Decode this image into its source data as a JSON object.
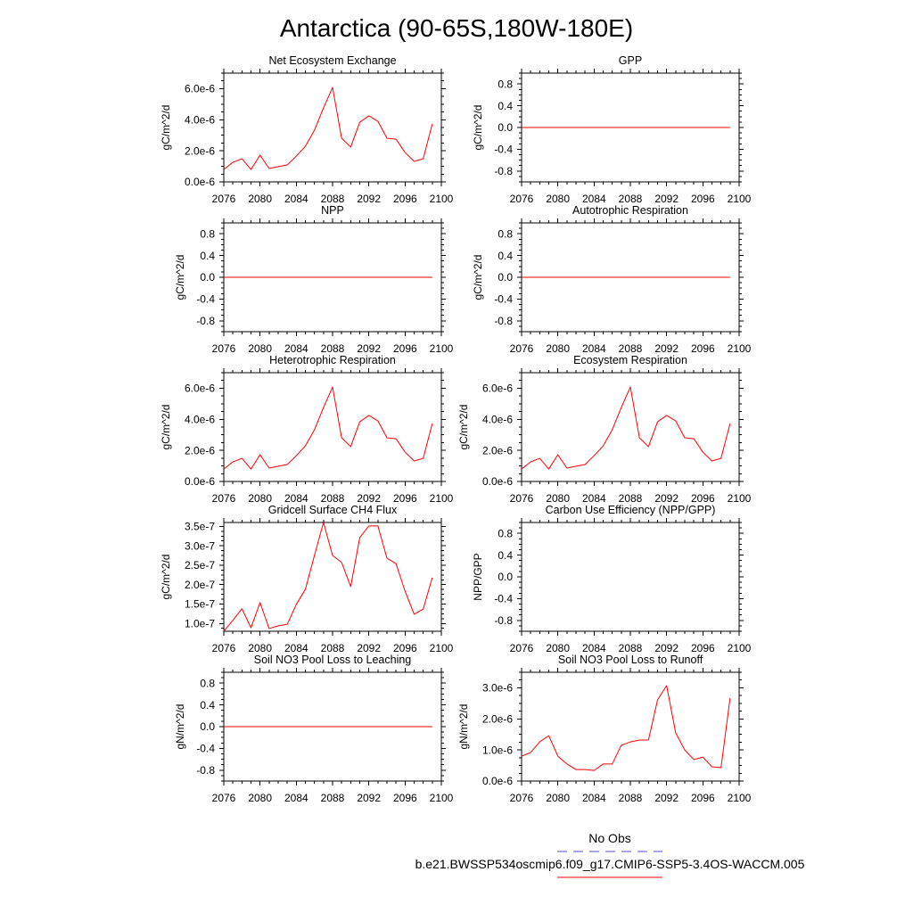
{
  "title": "Antarctica (90-65S,180W-180E)",
  "legend": {
    "obs_label": "No Obs",
    "obs_color": "#4b4bcf",
    "model_label": "b.e21.BWSSP534oscmip6.f09_g17.CMIP6-SSP5-3.4OS-WACCM.005",
    "model_color": "#ff0000"
  },
  "chart_data": [
    {
      "type": "line",
      "title": "Net Ecosystem Exchange",
      "ylabel": "gC/m^2/d",
      "xlim": [
        2076,
        2100
      ],
      "ylim": [
        0,
        7e-06
      ],
      "xticks": [
        2076,
        2080,
        2084,
        2088,
        2092,
        2096,
        2100
      ],
      "xticklabels": [
        "2076",
        "2080",
        "2084",
        "2088",
        "2092",
        "2096",
        "2100"
      ],
      "yticks": [
        0,
        2e-06,
        4e-06,
        6e-06
      ],
      "yticklabels": [
        "0.0e-6",
        "2.0e-6",
        "4.0e-6",
        "6.0e-6"
      ],
      "x": [
        2076,
        2077,
        2078,
        2079,
        2080,
        2081,
        2082,
        2083,
        2084,
        2085,
        2086,
        2087,
        2088,
        2089,
        2090,
        2091,
        2092,
        2093,
        2094,
        2095,
        2096,
        2097,
        2098,
        2099
      ],
      "y": [
        8e-07,
        1.26e-06,
        1.49e-06,
        8e-07,
        1.72e-06,
        8.6e-07,
        9.8e-07,
        1.09e-06,
        1.66e-06,
        2.29e-06,
        3.33e-06,
        4.76e-06,
        6.08e-06,
        2.81e-06,
        2.24e-06,
        3.84e-06,
        4.25e-06,
        3.9e-06,
        2.81e-06,
        2.75e-06,
        1.89e-06,
        1.32e-06,
        1.49e-06,
        3.73e-06
      ],
      "line_color": "#ff0000"
    },
    {
      "type": "line",
      "title": "GPP",
      "ylabel": "gC/m^2/d",
      "xlim": [
        2076,
        2100
      ],
      "ylim": [
        -1,
        1
      ],
      "xticks": [
        2076,
        2080,
        2084,
        2088,
        2092,
        2096,
        2100
      ],
      "xticklabels": [
        "2076",
        "2080",
        "2084",
        "2088",
        "2092",
        "2096",
        "2100"
      ],
      "yticks": [
        -0.8,
        -0.4,
        0,
        0.4,
        0.8
      ],
      "yticklabels": [
        "-0.8",
        "-0.4",
        "0.0",
        "0.4",
        "0.8"
      ],
      "x": [
        2076,
        2077,
        2078,
        2079,
        2080,
        2081,
        2082,
        2083,
        2084,
        2085,
        2086,
        2087,
        2088,
        2089,
        2090,
        2091,
        2092,
        2093,
        2094,
        2095,
        2096,
        2097,
        2098,
        2099
      ],
      "y": [
        0,
        0,
        0,
        0,
        0,
        0,
        0,
        0,
        0,
        0,
        0,
        0,
        0,
        0,
        0,
        0,
        0,
        0,
        0,
        0,
        0,
        0,
        0,
        0
      ],
      "line_color": "#ff0000"
    },
    {
      "type": "line",
      "title": "NPP",
      "ylabel": "gC/m^2/d",
      "xlim": [
        2076,
        2100
      ],
      "ylim": [
        -1,
        1
      ],
      "xticks": [
        2076,
        2080,
        2084,
        2088,
        2092,
        2096,
        2100
      ],
      "xticklabels": [
        "2076",
        "2080",
        "2084",
        "2088",
        "2092",
        "2096",
        "2100"
      ],
      "yticks": [
        -0.8,
        -0.4,
        0,
        0.4,
        0.8
      ],
      "yticklabels": [
        "-0.8",
        "-0.4",
        "0.0",
        "0.4",
        "0.8"
      ],
      "x": [
        2076,
        2077,
        2078,
        2079,
        2080,
        2081,
        2082,
        2083,
        2084,
        2085,
        2086,
        2087,
        2088,
        2089,
        2090,
        2091,
        2092,
        2093,
        2094,
        2095,
        2096,
        2097,
        2098,
        2099
      ],
      "y": [
        0,
        0,
        0,
        0,
        0,
        0,
        0,
        0,
        0,
        0,
        0,
        0,
        0,
        0,
        0,
        0,
        0,
        0,
        0,
        0,
        0,
        0,
        0,
        0
      ],
      "line_color": "#ff0000"
    },
    {
      "type": "line",
      "title": "Autotrophic Respiration",
      "ylabel": "gC/m^2/d",
      "xlim": [
        2076,
        2100
      ],
      "ylim": [
        -1,
        1
      ],
      "xticks": [
        2076,
        2080,
        2084,
        2088,
        2092,
        2096,
        2100
      ],
      "xticklabels": [
        "2076",
        "2080",
        "2084",
        "2088",
        "2092",
        "2096",
        "2100"
      ],
      "yticks": [
        -0.8,
        -0.4,
        0,
        0.4,
        0.8
      ],
      "yticklabels": [
        "-0.8",
        "-0.4",
        "0.0",
        "0.4",
        "0.8"
      ],
      "x": [
        2076,
        2077,
        2078,
        2079,
        2080,
        2081,
        2082,
        2083,
        2084,
        2085,
        2086,
        2087,
        2088,
        2089,
        2090,
        2091,
        2092,
        2093,
        2094,
        2095,
        2096,
        2097,
        2098,
        2099
      ],
      "y": [
        0,
        0,
        0,
        0,
        0,
        0,
        0,
        0,
        0,
        0,
        0,
        0,
        0,
        0,
        0,
        0,
        0,
        0,
        0,
        0,
        0,
        0,
        0,
        0
      ],
      "line_color": "#ff0000"
    },
    {
      "type": "line",
      "title": "Heterotrophic Respiration",
      "ylabel": "gC/m^2/d",
      "xlim": [
        2076,
        2100
      ],
      "ylim": [
        0,
        7e-06
      ],
      "xticks": [
        2076,
        2080,
        2084,
        2088,
        2092,
        2096,
        2100
      ],
      "xticklabels": [
        "2076",
        "2080",
        "2084",
        "2088",
        "2092",
        "2096",
        "2100"
      ],
      "yticks": [
        0,
        2e-06,
        4e-06,
        6e-06
      ],
      "yticklabels": [
        "0.0e-6",
        "2.0e-6",
        "4.0e-6",
        "6.0e-6"
      ],
      "x": [
        2076,
        2077,
        2078,
        2079,
        2080,
        2081,
        2082,
        2083,
        2084,
        2085,
        2086,
        2087,
        2088,
        2089,
        2090,
        2091,
        2092,
        2093,
        2094,
        2095,
        2096,
        2097,
        2098,
        2099
      ],
      "y": [
        8e-07,
        1.26e-06,
        1.49e-06,
        8e-07,
        1.72e-06,
        8.6e-07,
        9.8e-07,
        1.09e-06,
        1.66e-06,
        2.29e-06,
        3.33e-06,
        4.76e-06,
        6.08e-06,
        2.81e-06,
        2.24e-06,
        3.84e-06,
        4.25e-06,
        3.9e-06,
        2.81e-06,
        2.75e-06,
        1.89e-06,
        1.32e-06,
        1.49e-06,
        3.73e-06
      ],
      "line_color": "#ff0000"
    },
    {
      "type": "line",
      "title": "Ecosystem Respiration",
      "ylabel": "gC/m^2/d",
      "xlim": [
        2076,
        2100
      ],
      "ylim": [
        0,
        7e-06
      ],
      "xticks": [
        2076,
        2080,
        2084,
        2088,
        2092,
        2096,
        2100
      ],
      "xticklabels": [
        "2076",
        "2080",
        "2084",
        "2088",
        "2092",
        "2096",
        "2100"
      ],
      "yticks": [
        0,
        2e-06,
        4e-06,
        6e-06
      ],
      "yticklabels": [
        "0.0e-6",
        "2.0e-6",
        "4.0e-6",
        "6.0e-6"
      ],
      "x": [
        2076,
        2077,
        2078,
        2079,
        2080,
        2081,
        2082,
        2083,
        2084,
        2085,
        2086,
        2087,
        2088,
        2089,
        2090,
        2091,
        2092,
        2093,
        2094,
        2095,
        2096,
        2097,
        2098,
        2099
      ],
      "y": [
        8e-07,
        1.26e-06,
        1.49e-06,
        8e-07,
        1.72e-06,
        8.6e-07,
        9.8e-07,
        1.09e-06,
        1.66e-06,
        2.29e-06,
        3.33e-06,
        4.76e-06,
        6.08e-06,
        2.81e-06,
        2.24e-06,
        3.84e-06,
        4.25e-06,
        3.9e-06,
        2.81e-06,
        2.75e-06,
        1.89e-06,
        1.32e-06,
        1.49e-06,
        3.73e-06
      ],
      "line_color": "#ff0000"
    },
    {
      "type": "line",
      "title": "Gridcell Surface CH4 Flux",
      "ylabel": "gC/m^2/d",
      "xlim": [
        2076,
        2100
      ],
      "ylim": [
        8e-08,
        3.6e-07
      ],
      "xticks": [
        2076,
        2080,
        2084,
        2088,
        2092,
        2096,
        2100
      ],
      "xticklabels": [
        "2076",
        "2080",
        "2084",
        "2088",
        "2092",
        "2096",
        "2100"
      ],
      "yticks": [
        1e-07,
        1.5e-07,
        2e-07,
        2.5e-07,
        3e-07,
        3.5e-07
      ],
      "yticklabels": [
        "1.0e-7",
        "1.5e-7",
        "2.0e-7",
        "2.5e-7",
        "3.0e-7",
        "3.5e-7"
      ],
      "x": [
        2076,
        2077,
        2078,
        2079,
        2080,
        2081,
        2082,
        2083,
        2084,
        2085,
        2086,
        2087,
        2088,
        2089,
        2090,
        2091,
        2092,
        2093,
        2094,
        2095,
        2096,
        2097,
        2098,
        2099
      ],
      "y": [
        8e-08,
        1.08e-07,
        1.38e-07,
        8.9e-08,
        1.54e-07,
        8.7e-08,
        9.4e-08,
        9.8e-08,
        1.49e-07,
        1.88e-07,
        2.75e-07,
        3.6e-07,
        2.75e-07,
        2.57e-07,
        1.95e-07,
        3.21e-07,
        3.51e-07,
        3.51e-07,
        2.68e-07,
        2.54e-07,
        1.83e-07,
        1.24e-07,
        1.37e-07,
        2.18e-07
      ],
      "line_color": "#ff0000"
    },
    {
      "type": "line",
      "title": "Carbon Use Efficiency (NPP/GPP)",
      "ylabel": "NPP/GPP",
      "xlim": [
        2076,
        2100
      ],
      "ylim": [
        -1,
        1
      ],
      "xticks": [
        2076,
        2080,
        2084,
        2088,
        2092,
        2096,
        2100
      ],
      "xticklabels": [
        "2076",
        "2080",
        "2084",
        "2088",
        "2092",
        "2096",
        "2100"
      ],
      "yticks": [
        -0.8,
        -0.4,
        0,
        0.4,
        0.8
      ],
      "yticklabels": [
        "-0.8",
        "-0.4",
        "0.0",
        "0.4",
        "0.8"
      ],
      "x": [],
      "y": []
    },
    {
      "type": "line",
      "title": "Soil NO3 Pool Loss to Leaching",
      "ylabel": "gN/m^2/d",
      "xlim": [
        2076,
        2100
      ],
      "ylim": [
        -1,
        1
      ],
      "xticks": [
        2076,
        2080,
        2084,
        2088,
        2092,
        2096,
        2100
      ],
      "xticklabels": [
        "2076",
        "2080",
        "2084",
        "2088",
        "2092",
        "2096",
        "2100"
      ],
      "yticks": [
        -0.8,
        -0.4,
        0,
        0.4,
        0.8
      ],
      "yticklabels": [
        "-0.8",
        "-0.4",
        "0.0",
        "0.4",
        "0.8"
      ],
      "x": [
        2076,
        2077,
        2078,
        2079,
        2080,
        2081,
        2082,
        2083,
        2084,
        2085,
        2086,
        2087,
        2088,
        2089,
        2090,
        2091,
        2092,
        2093,
        2094,
        2095,
        2096,
        2097,
        2098,
        2099
      ],
      "y": [
        0,
        0,
        0,
        0,
        0,
        0,
        0,
        0,
        0,
        0,
        0,
        0,
        0,
        0,
        0,
        0,
        0,
        0,
        0,
        0,
        0,
        0,
        0,
        0
      ],
      "line_color": "#ff0000"
    },
    {
      "type": "line",
      "title": "Soil NO3 Pool Loss to Runoff",
      "ylabel": "gN/m^2/d",
      "xlim": [
        2076,
        2100
      ],
      "ylim": [
        0,
        3.5e-06
      ],
      "xticks": [
        2076,
        2080,
        2084,
        2088,
        2092,
        2096,
        2100
      ],
      "xticklabels": [
        "2076",
        "2080",
        "2084",
        "2088",
        "2092",
        "2096",
        "2100"
      ],
      "yticks": [
        0,
        1e-06,
        2e-06,
        3e-06
      ],
      "yticklabels": [
        "0.0e-6",
        "1.0e-6",
        "2.0e-6",
        "3.0e-6"
      ],
      "x": [
        2076,
        2077,
        2078,
        2079,
        2080,
        2081,
        2082,
        2083,
        2084,
        2085,
        2086,
        2087,
        2088,
        2089,
        2090,
        2091,
        2092,
        2093,
        2094,
        2095,
        2096,
        2097,
        2098,
        2099
      ],
      "y": [
        8e-07,
        9.2e-07,
        1.26e-06,
        1.46e-06,
        8e-07,
        5.5e-07,
        3.7e-07,
        3.7e-07,
        3.4e-07,
        5.5e-07,
        5.5e-07,
        1.15e-06,
        1.26e-06,
        1.32e-06,
        1.32e-06,
        2.61e-06,
        3.07e-06,
        1.55e-06,
        1e-06,
        6.9e-07,
        7.7e-07,
        4.6e-07,
        4.3e-07,
        2.67e-06
      ],
      "line_color": "#ff0000"
    }
  ]
}
